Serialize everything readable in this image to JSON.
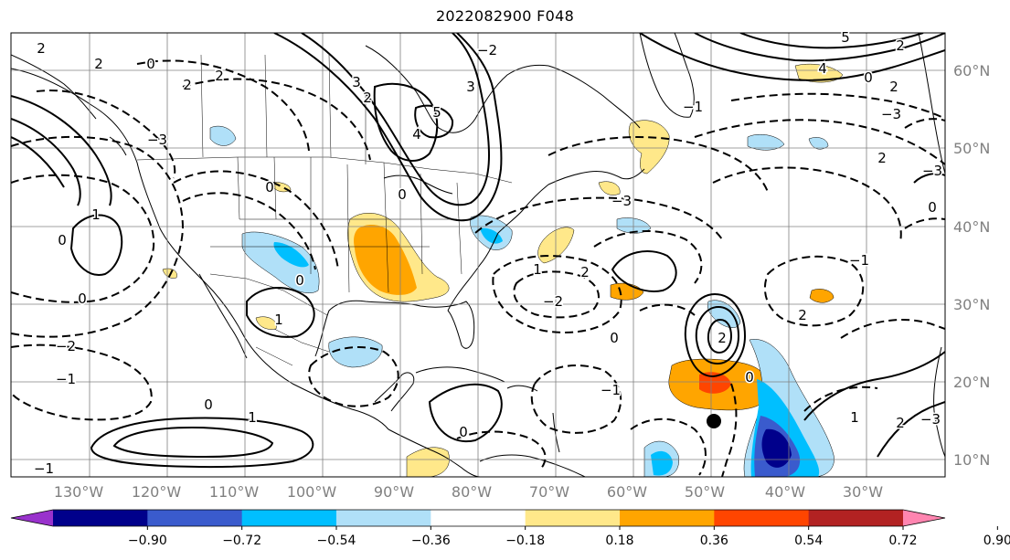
{
  "title": "2022082900 F048",
  "longitude_labels": [
    "130°W",
    "120°W",
    "110°W",
    "100°W",
    "90°W",
    "80°W",
    "70°W",
    "60°W",
    "50°W",
    "40°W",
    "30°W"
  ],
  "latitude_labels": [
    "60°N",
    "50°N",
    "40°N",
    "30°N",
    "20°N",
    "10°N"
  ],
  "colorbar": {
    "tick_labels": [
      "−0.90",
      "−0.72",
      "−0.54",
      "−0.36",
      "−0.18",
      "0.18",
      "0.36",
      "0.54",
      "0.72",
      "0.90"
    ],
    "colors": [
      "#9932cc",
      "#00008b",
      "#3a5bcd",
      "#00bfff",
      "#b0e0f8",
      "#ffffff",
      "#ffe88a",
      "#ffa500",
      "#ff4500",
      "#b22222",
      "#ff85b0"
    ]
  },
  "contour_labels": [
    "0",
    "1",
    "2",
    "3",
    "4",
    "5",
    "−1",
    "−2",
    "−3"
  ],
  "marker": "storm-position-dot"
}
